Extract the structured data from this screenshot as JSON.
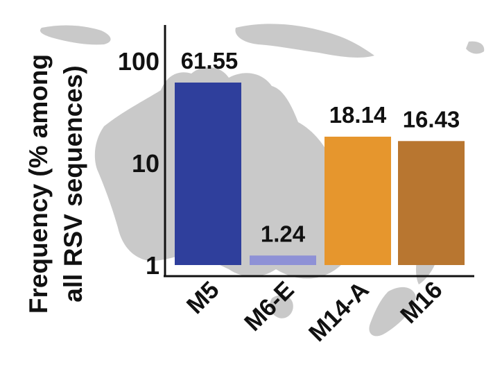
{
  "chart_data": {
    "type": "bar",
    "scale": "log",
    "ylabel_line1": "Frequency (% among",
    "ylabel_line2": "all RSV sequences)",
    "ylim": [
      1,
      100
    ],
    "yticks": [
      "100",
      "10",
      "1"
    ],
    "ytick_values": [
      100,
      10,
      1
    ],
    "categories": [
      "M5",
      "M6-E",
      "M14-A",
      "M16"
    ],
    "values": [
      61.55,
      1.24,
      18.14,
      16.43
    ],
    "value_labels": [
      "61.55",
      "1.24",
      "18.14",
      "16.43"
    ],
    "colors": [
      "#2f3f9c",
      "#8e91d6",
      "#e6962d",
      "#b87630"
    ],
    "background": "map-of-australia-and-new-zealand",
    "grid": false,
    "legend": "none"
  }
}
